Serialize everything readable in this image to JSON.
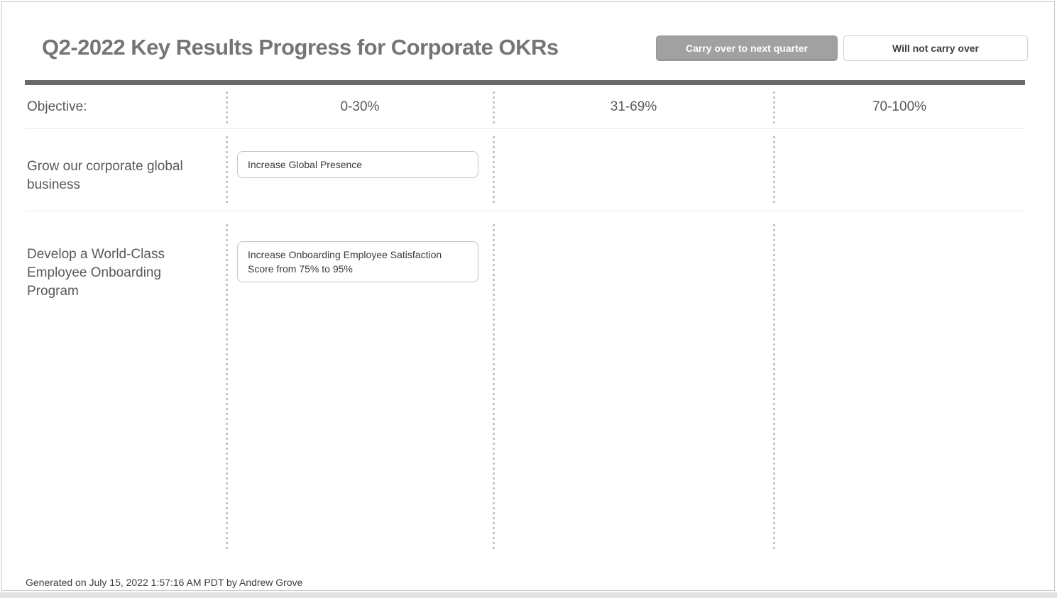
{
  "page": {
    "title": "Q2-2022 Key Results Progress for Corporate OKRs",
    "footer": "Generated on July 15, 2022 1:57:16 AM PDT by Andrew Grove"
  },
  "toolbar": {
    "carry_over_label": "Carry over to next quarter",
    "will_not_carry_label": "Will not carry over"
  },
  "table": {
    "objective_header": "Objective:",
    "range_headers": [
      "0-30%",
      "31-69%",
      "70-100%"
    ],
    "rows": [
      {
        "objective": "Grow our corporate global business",
        "cards": [
          {
            "column": "0-30%",
            "label": "Increase Global Presence"
          }
        ]
      },
      {
        "objective": "Develop a World-Class Employee Onboarding Program",
        "cards": [
          {
            "column": "0-30%",
            "label": "Increase Onboarding Employee Satisfaction Score from 75% to 95%"
          }
        ]
      }
    ]
  },
  "colors": {
    "title_text": "#757575",
    "header_bar": "#696969",
    "body_text": "#595959",
    "card_text": "#3b3b3b",
    "card_border": "#c6c6c6",
    "dashed_separator": "#c6c6c6",
    "row_divider": "#eaeaea",
    "carry_button_bg": "#a1a1a1",
    "carry_button_text": "#ffffff",
    "outline_button_border": "#cfcfcf",
    "outline_button_text": "#3f3f3f",
    "page_border": "#c9c9c9"
  }
}
